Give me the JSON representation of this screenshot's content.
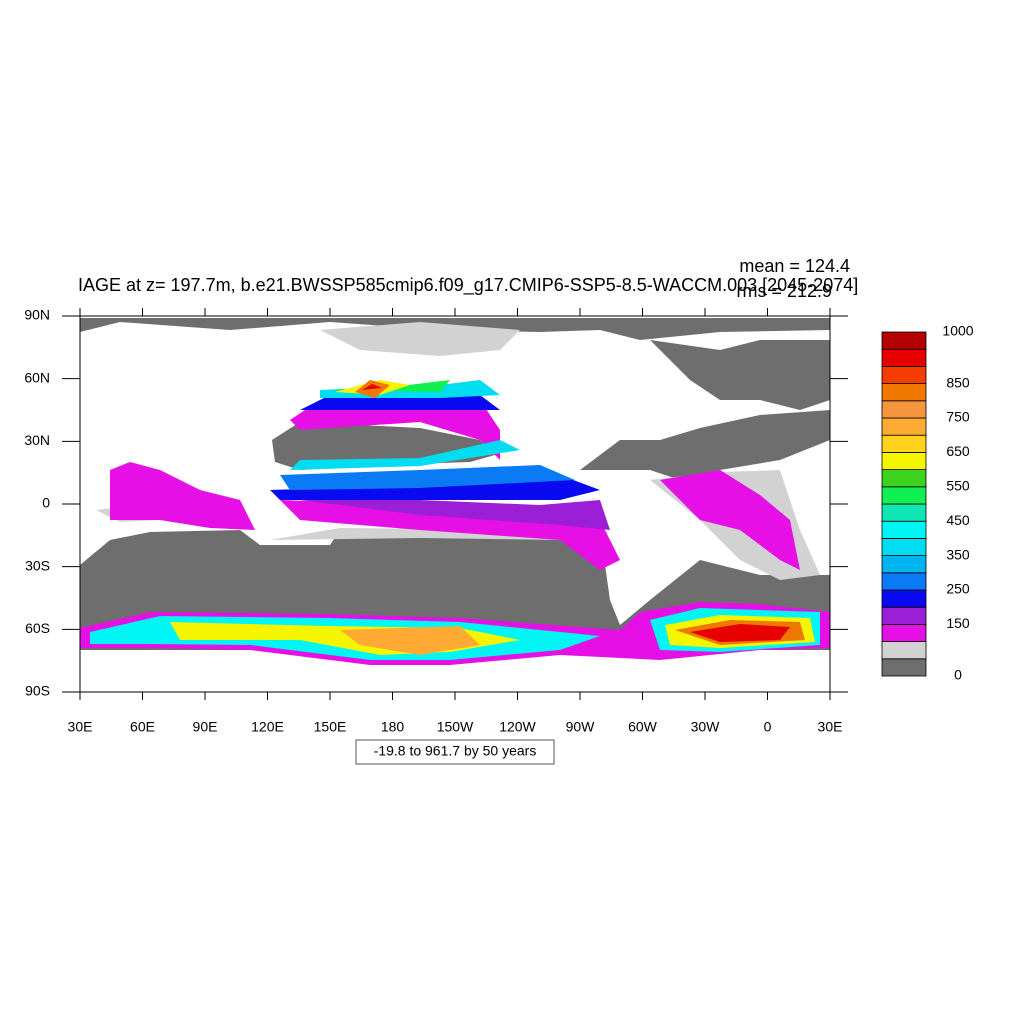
{
  "chart_data": {
    "type": "map",
    "title": "IAGE at z= 197.7m, b.e21.BWSSP585cmip6.f09_g17.CMIP6-SSP5-8.5-WACCM.003 [2045-2074]",
    "mean_label": "mean = 124.4",
    "rms_label": "rms = 212.9",
    "range_label": "-19.8 to 961.7 by 50 years",
    "xlim": [
      30,
      390
    ],
    "ylim": [
      -90,
      90
    ],
    "xticks": [
      {
        "value": 30,
        "label": "30E"
      },
      {
        "value": 60,
        "label": "60E"
      },
      {
        "value": 90,
        "label": "90E"
      },
      {
        "value": 120,
        "label": "120E"
      },
      {
        "value": 150,
        "label": "150E"
      },
      {
        "value": 180,
        "label": "180"
      },
      {
        "value": 210,
        "label": "150W"
      },
      {
        "value": 240,
        "label": "120W"
      },
      {
        "value": 270,
        "label": "90W"
      },
      {
        "value": 300,
        "label": "60W"
      },
      {
        "value": 330,
        "label": "30W"
      },
      {
        "value": 360,
        "label": "0"
      },
      {
        "value": 390,
        "label": "30E"
      }
    ],
    "yticks": [
      {
        "value": 90,
        "label": "90N"
      },
      {
        "value": 60,
        "label": "60N"
      },
      {
        "value": 30,
        "label": "30N"
      },
      0,
      {
        "value": -30,
        "label": "30S"
      },
      {
        "value": -60,
        "label": "60S"
      },
      {
        "value": -90,
        "label": "90S"
      }
    ],
    "colorbar": {
      "levels": [
        0,
        50,
        100,
        150,
        200,
        250,
        300,
        350,
        400,
        450,
        500,
        550,
        600,
        650,
        700,
        750,
        800,
        850,
        900,
        950,
        1000
      ],
      "colors": [
        "#6e6e6e",
        "#d2d2d2",
        "#e60fe6",
        "#9b1fd6",
        "#0a0af0",
        "#0a7af5",
        "#00b4f0",
        "#00dcf0",
        "#00f5f5",
        "#10e6b4",
        "#10f050",
        "#3cd21e",
        "#f5f500",
        "#ffd21e",
        "#ffaa32",
        "#f5963c",
        "#f07800",
        "#f53c00",
        "#e60000",
        "#b40000"
      ],
      "ticks": [
        0,
        150,
        250,
        350,
        450,
        550,
        650,
        750,
        850,
        1000
      ]
    }
  }
}
